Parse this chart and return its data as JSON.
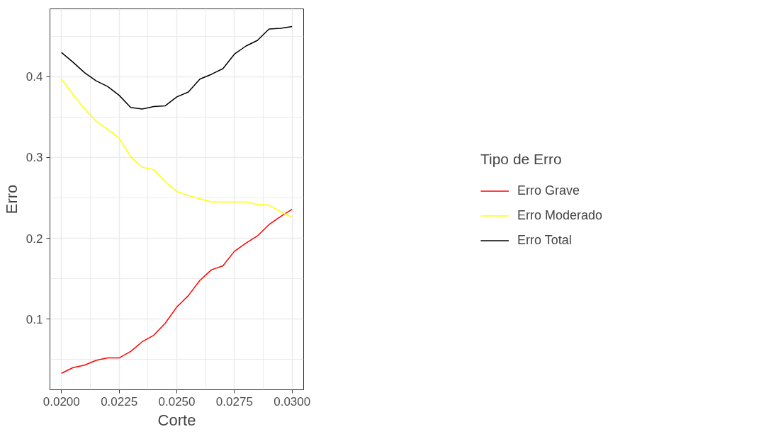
{
  "chart_data": {
    "type": "line",
    "xlabel": "Corte",
    "ylabel": "Erro",
    "legend_title": "Tipo de Erro",
    "x": [
      0.02,
      0.0205,
      0.021,
      0.0215,
      0.022,
      0.0225,
      0.023,
      0.0235,
      0.024,
      0.0245,
      0.025,
      0.0255,
      0.026,
      0.0265,
      0.027,
      0.0275,
      0.028,
      0.0285,
      0.029,
      0.0295,
      0.03
    ],
    "series": [
      {
        "name": "Erro Grave",
        "color": "#ff0000",
        "values": [
          0.033,
          0.04,
          0.043,
          0.049,
          0.052,
          0.052,
          0.06,
          0.072,
          0.08,
          0.095,
          0.115,
          0.129,
          0.148,
          0.161,
          0.166,
          0.184,
          0.194,
          0.203,
          0.217,
          0.227,
          0.236
        ]
      },
      {
        "name": "Erro Moderado",
        "color": "#ffff00",
        "values": [
          0.397,
          0.378,
          0.36,
          0.345,
          0.335,
          0.324,
          0.301,
          0.288,
          0.285,
          0.27,
          0.258,
          0.253,
          0.249,
          0.245,
          0.245,
          0.245,
          0.245,
          0.242,
          0.241,
          0.233,
          0.226
        ]
      },
      {
        "name": "Erro Total",
        "color": "#000000",
        "values": [
          0.43,
          0.418,
          0.405,
          0.395,
          0.388,
          0.377,
          0.362,
          0.36,
          0.363,
          0.364,
          0.375,
          0.381,
          0.397,
          0.403,
          0.41,
          0.428,
          0.438,
          0.445,
          0.459,
          0.46,
          0.462
        ]
      }
    ],
    "xlim": [
      0.0195,
      0.0305
    ],
    "ylim": [
      0.0126,
      0.484
    ],
    "xticks": [
      {
        "value": 0.02,
        "label": "0.0200"
      },
      {
        "value": 0.0225,
        "label": "0.0225"
      },
      {
        "value": 0.025,
        "label": "0.0250"
      },
      {
        "value": 0.0275,
        "label": "0.0275"
      },
      {
        "value": 0.03,
        "label": "0.0300"
      }
    ],
    "yticks": [
      0.1,
      0.2,
      0.3,
      0.4
    ],
    "grid": true,
    "legend": "right",
    "marker": "none",
    "line_style": "solid"
  }
}
